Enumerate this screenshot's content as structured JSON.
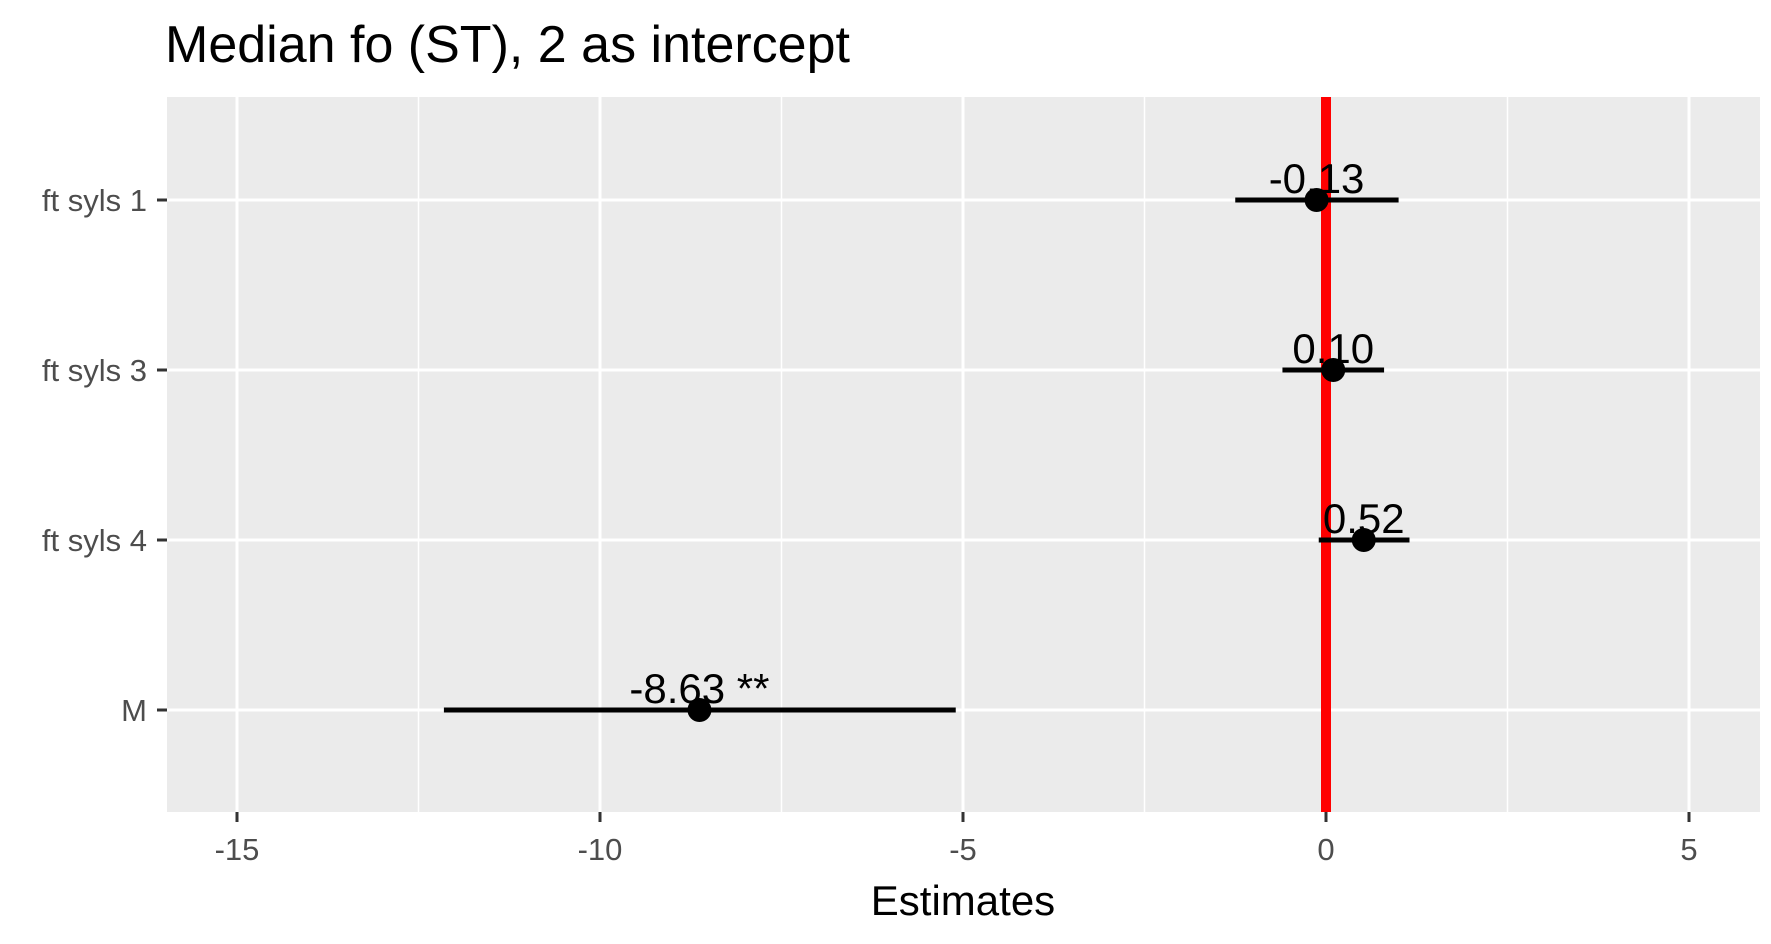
{
  "chart_data": {
    "type": "forest",
    "title": "Median fo (ST), 2 as intercept",
    "xlabel": "Estimates",
    "ylabel": "",
    "xlim": [
      -16,
      6
    ],
    "x_ticks": [
      -15,
      -10,
      -5,
      0,
      5
    ],
    "x_minor_gridlines": [
      -12.5,
      -7.5,
      -2.5,
      2.5
    ],
    "reference_line": {
      "x": 0,
      "color": "#ff0000"
    },
    "panel_background": "#ebebeb",
    "grid": true,
    "legend": "none",
    "terms": [
      {
        "label": "ft syls 1",
        "estimate": -0.13,
        "ci_low": -1.25,
        "ci_high": 1.0,
        "text": "-0.13"
      },
      {
        "label": "ft syls 3",
        "estimate": 0.1,
        "ci_low": -0.6,
        "ci_high": 0.8,
        "text": "0.10"
      },
      {
        "label": "ft syls 4",
        "estimate": 0.52,
        "ci_low": -0.1,
        "ci_high": 1.15,
        "text": "0.52"
      },
      {
        "label": "M",
        "estimate": -8.63,
        "ci_low": -12.15,
        "ci_high": -5.1,
        "text": "-8.63 **"
      }
    ]
  }
}
